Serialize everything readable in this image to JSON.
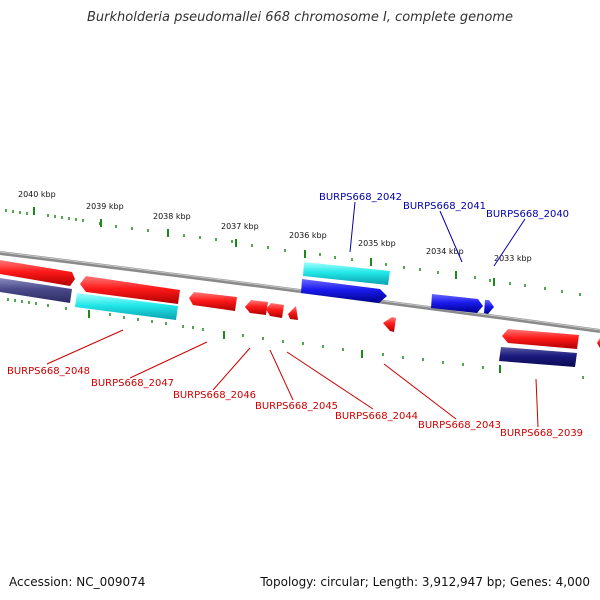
{
  "title": "Burkholderia pseudomallei 668 chromosome I, complete genome",
  "footer": {
    "accession": "Accession: NC_009074",
    "topology": "Topology: circular; Length: 3,912,947 bp; Genes: 4,000"
  },
  "colors": {
    "tick": "#1a8a1a",
    "backbone": "#8a8a8a",
    "cds_forward": "#ff1a1a",
    "cds_reverse": "#1a1aee",
    "rna_forward": "#22e8e8",
    "dark_reverse": "#1a1a80",
    "faded_reverse": "#4a4a8a",
    "label_reverse": "#0000aa",
    "label_forward": "#cc0000"
  },
  "kbp_labels": [
    "2040 kbp",
    "2039 kbp",
    "2038 kbp",
    "2037 kbp",
    "2036 kbp",
    "2035 kbp",
    "2034 kbp",
    "2033 kbp"
  ],
  "gene_labels_top": [
    "BURPS668_2042",
    "BURPS668_2041",
    "BURPS668_2040"
  ],
  "gene_labels_bottom": [
    "BURPS668_2048",
    "BURPS668_2047",
    "BURPS668_2046",
    "BURPS668_2045",
    "BURPS668_2044",
    "BURPS668_2043",
    "BURPS668_2039"
  ]
}
